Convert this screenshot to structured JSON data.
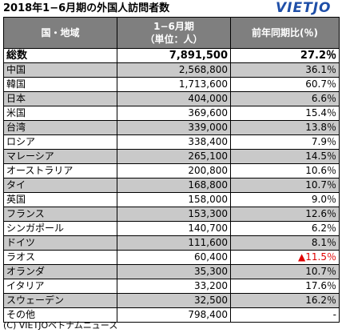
{
  "header": {
    "title": "2018年1−6月期の外国人訪問者数",
    "logo": "VIETJO"
  },
  "table": {
    "columns": [
      "国・地域",
      "1−6月期\n（単位：人）",
      "前年同期比(％)"
    ],
    "total": {
      "label": "総数",
      "value": "7,891,500",
      "change": "27.2％"
    },
    "rows": [
      {
        "country": "中国",
        "value": "2,568,800",
        "change": "36.1％"
      },
      {
        "country": "韓国",
        "value": "1,713,600",
        "change": "60.7％"
      },
      {
        "country": "日本",
        "value": "404,000",
        "change": "6.6％"
      },
      {
        "country": "米国",
        "value": "369,600",
        "change": "15.4％"
      },
      {
        "country": "台湾",
        "value": "339,000",
        "change": "13.8％"
      },
      {
        "country": "ロシア",
        "value": "338,400",
        "change": "7.9％"
      },
      {
        "country": "マレーシア",
        "value": "265,100",
        "change": "14.5％"
      },
      {
        "country": "オーストラリア",
        "value": "200,800",
        "change": "10.6％"
      },
      {
        "country": "タイ",
        "value": "168,800",
        "change": "10.7％"
      },
      {
        "country": "英国",
        "value": "158,000",
        "change": "9.0％"
      },
      {
        "country": "フランス",
        "value": "153,300",
        "change": "12.6％"
      },
      {
        "country": "シンガポール",
        "value": "140,700",
        "change": "6.2％"
      },
      {
        "country": "ドイツ",
        "value": "111,600",
        "change": "8.1％"
      },
      {
        "country": "ラオス",
        "value": "60,400",
        "change": "▲11.5％",
        "negative": true
      },
      {
        "country": "オランダ",
        "value": "35,300",
        "change": "10.7％"
      },
      {
        "country": "イタリア",
        "value": "33,200",
        "change": "17.6％"
      },
      {
        "country": "スウェーデン",
        "value": "32,500",
        "change": "16.2％"
      },
      {
        "country": "その他",
        "value": "798,400",
        "change": "-"
      }
    ]
  },
  "footer": {
    "credit": "(C) VIETJOベトナムニュース"
  },
  "colors": {
    "header_bg": "#7f7f7f",
    "shade_bg": "#c9c9c9",
    "negative": "#e00000",
    "logo": "#1f4fa8"
  }
}
